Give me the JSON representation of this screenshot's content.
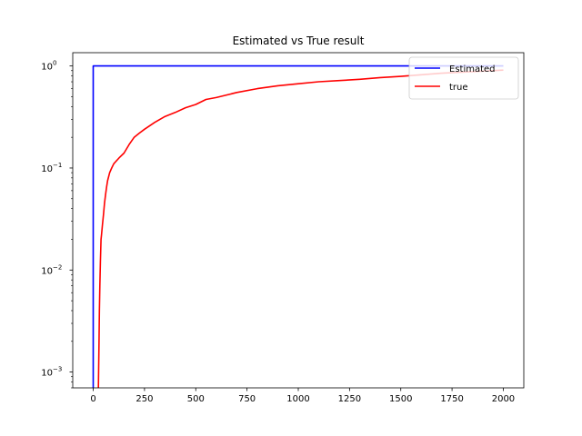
{
  "chart_data": {
    "type": "line",
    "title": "Estimated vs True result",
    "xlabel": "",
    "ylabel": "",
    "yscale": "log",
    "xlim": [
      -100,
      2100
    ],
    "ylim": [
      0.0007,
      1.35
    ],
    "x_ticks": [
      0,
      250,
      500,
      750,
      1000,
      1250,
      1500,
      1750,
      2000
    ],
    "x_tick_labels": [
      "0",
      "250",
      "500",
      "750",
      "1000",
      "1250",
      "1500",
      "1750",
      "2000"
    ],
    "y_ticks": [
      0.001,
      0.01,
      0.1,
      1
    ],
    "y_tick_labels": [
      {
        "base": "10",
        "exp": "−3"
      },
      {
        "base": "10",
        "exp": "−2"
      },
      {
        "base": "10",
        "exp": "−1"
      },
      {
        "base": "10",
        "exp": "0"
      }
    ],
    "grid": false,
    "legend_position": "top-right",
    "series": [
      {
        "name": "Estimated",
        "color": "#0000ff",
        "x": [
          0,
          0,
          2000
        ],
        "y": [
          0.0007,
          1,
          1
        ]
      },
      {
        "name": "true",
        "color": "#ff0000",
        "x": [
          25,
          28,
          30,
          32,
          35,
          38,
          40,
          45,
          50,
          55,
          60,
          65,
          70,
          80,
          90,
          100,
          125,
          150,
          175,
          200,
          225,
          250,
          300,
          350,
          400,
          450,
          500,
          550,
          600,
          700,
          800,
          900,
          1000,
          1100,
          1200,
          1300,
          1400,
          1500,
          1600,
          1700,
          1800,
          1900,
          2000
        ],
        "y": [
          0.0007,
          0.002,
          0.004,
          0.007,
          0.012,
          0.02,
          0.022,
          0.028,
          0.035,
          0.045,
          0.055,
          0.065,
          0.075,
          0.09,
          0.1,
          0.11,
          0.125,
          0.14,
          0.17,
          0.2,
          0.22,
          0.24,
          0.28,
          0.32,
          0.35,
          0.39,
          0.42,
          0.47,
          0.49,
          0.55,
          0.6,
          0.64,
          0.67,
          0.7,
          0.72,
          0.74,
          0.77,
          0.79,
          0.82,
          0.85,
          0.87,
          0.89,
          0.91
        ]
      }
    ]
  }
}
